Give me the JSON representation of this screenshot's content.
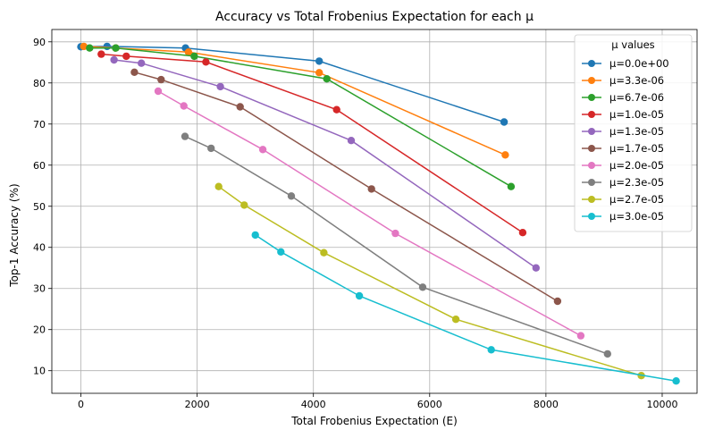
{
  "chart_data": {
    "type": "line",
    "title": "Accuracy vs Total Frobenius Expectation for each μ",
    "xlabel": "Total Frobenius Expectation (E)",
    "ylabel": "Top-1 Accuracy (%)",
    "xlim": [
      -500,
      10600
    ],
    "ylim": [
      4.5,
      93
    ],
    "xticks": [
      0,
      2000,
      4000,
      6000,
      8000,
      10000
    ],
    "yticks": [
      10,
      20,
      30,
      40,
      50,
      60,
      70,
      80,
      90
    ],
    "grid": true,
    "legend_title": "μ values",
    "legend_position": "top-right",
    "series": [
      {
        "name": "μ=0.0e+00",
        "color": "#1f77b4",
        "x": [
          0,
          450,
          1800,
          4100,
          7280
        ],
        "y": [
          88.8,
          88.9,
          88.5,
          85.3,
          70.5
        ]
      },
      {
        "name": "μ=3.3e-06",
        "color": "#ff7f0e",
        "x": [
          50,
          600,
          1850,
          4100,
          7300
        ],
        "y": [
          88.9,
          88.5,
          87.5,
          82.5,
          62.5
        ]
      },
      {
        "name": "μ=6.7e-06",
        "color": "#2ca02c",
        "x": [
          150,
          600,
          1950,
          4230,
          7400
        ],
        "y": [
          88.5,
          88.5,
          86.5,
          81.0,
          54.8
        ]
      },
      {
        "name": "μ=1.0e-05",
        "color": "#d62728",
        "x": [
          350,
          780,
          2150,
          4400,
          7600
        ],
        "y": [
          87.0,
          86.5,
          85.1,
          73.5,
          43.6
        ]
      },
      {
        "name": "μ=1.3e-05",
        "color": "#9467bd",
        "x": [
          570,
          1040,
          2400,
          4650,
          7830
        ],
        "y": [
          85.6,
          84.8,
          79.1,
          66.0,
          35.0
        ]
      },
      {
        "name": "μ=1.7e-05",
        "color": "#8c564b",
        "x": [
          920,
          1380,
          2740,
          5000,
          8200
        ],
        "y": [
          82.6,
          80.8,
          74.2,
          54.2,
          26.9
        ]
      },
      {
        "name": "μ=2.0e-05",
        "color": "#e377c2",
        "x": [
          1330,
          1770,
          3130,
          5410,
          8600
        ],
        "y": [
          78.0,
          74.4,
          63.8,
          43.4,
          18.5
        ]
      },
      {
        "name": "μ=2.3e-05",
        "color": "#7f7f7f",
        "x": [
          1790,
          2240,
          3620,
          5880,
          9060
        ],
        "y": [
          67.0,
          64.1,
          52.5,
          30.3,
          14.1
        ]
      },
      {
        "name": "μ=2.7e-05",
        "color": "#bcbd22",
        "x": [
          2370,
          2810,
          4180,
          6450,
          9640
        ],
        "y": [
          54.8,
          50.3,
          38.7,
          22.5,
          8.8
        ]
      },
      {
        "name": "μ=3.0e-05",
        "color": "#17becf",
        "x": [
          3000,
          3440,
          4790,
          7060,
          10240
        ],
        "y": [
          43.0,
          38.9,
          28.2,
          15.1,
          7.5
        ]
      }
    ]
  }
}
